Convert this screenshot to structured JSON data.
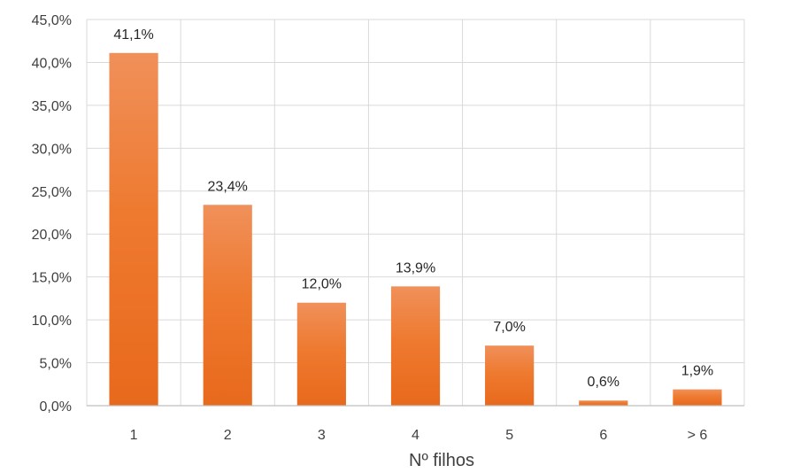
{
  "chart_data": {
    "type": "bar",
    "title": "",
    "xlabel": "Nº filhos",
    "ylabel": "",
    "categories": [
      "1",
      "2",
      "3",
      "4",
      "5",
      "6",
      "> 6"
    ],
    "values": [
      41.1,
      23.4,
      12.0,
      13.9,
      7.0,
      0.6,
      1.9
    ],
    "value_labels": [
      "41,1%",
      "23,4%",
      "12,0%",
      "13,9%",
      "7,0%",
      "0,6%",
      "1,9%"
    ],
    "ylim": [
      0,
      45
    ],
    "yticks": [
      0,
      5,
      10,
      15,
      20,
      25,
      30,
      35,
      40,
      45
    ],
    "ytick_labels": [
      "0,0%",
      "5,0%",
      "10,0%",
      "15,0%",
      "20,0%",
      "25,0%",
      "30,0%",
      "35,0%",
      "40,0%",
      "45,0%"
    ],
    "grid": true,
    "legend": "none",
    "colors": {
      "bar_top": "#F0905A",
      "bar_bottom": "#E8691C",
      "grid": "#D9D9D9",
      "axis": "#BFBFBF"
    }
  }
}
